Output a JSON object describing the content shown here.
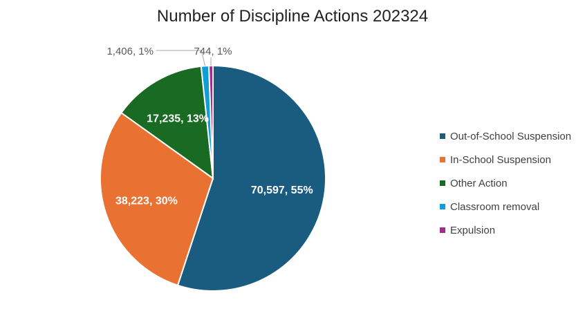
{
  "chart_data": {
    "type": "pie",
    "title": "Number of Discipline Actions 202324",
    "legend_position": "right",
    "slices": [
      {
        "name": "Out-of-School Suspension",
        "value": 70597,
        "percent_label": "55%",
        "label": "70,597, 55%",
        "color": "#1a5c80"
      },
      {
        "name": "In-School Suspension",
        "value": 38223,
        "percent_label": "30%",
        "label": "38,223, 30%",
        "color": "#e97132"
      },
      {
        "name": "Other Action",
        "value": 17235,
        "percent_label": "13%",
        "label": "17,235, 13%",
        "color": "#196b24"
      },
      {
        "name": "Classroom removal",
        "value": 1406,
        "percent_label": "1%",
        "label": "1,406, 1%",
        "color": "#0f9ed5"
      },
      {
        "name": "Expulsion",
        "value": 744,
        "percent_label": "1%",
        "label": "744, 1%",
        "color": "#a02b93"
      }
    ]
  }
}
